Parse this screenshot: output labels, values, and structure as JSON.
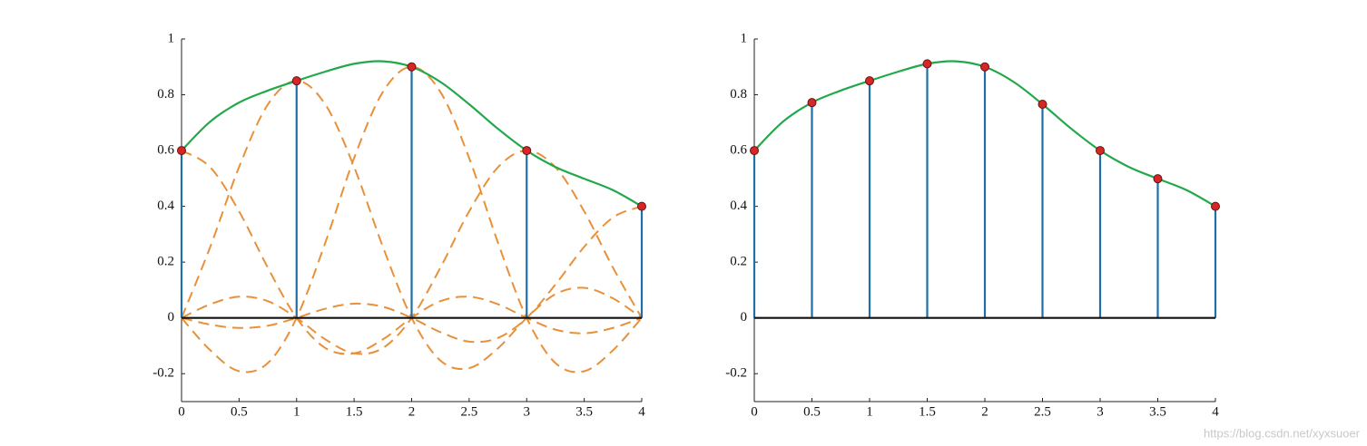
{
  "chart_data": [
    {
      "type": "stem",
      "x": [
        0,
        1,
        2,
        3,
        4
      ],
      "values": [
        0.6,
        0.85,
        0.9,
        0.6,
        0.4
      ],
      "stem_color": "#1f6fa8",
      "marker_color": "#d62728",
      "baseline_color": "#111111",
      "curve_x": [
        0,
        0.25,
        0.5,
        0.75,
        1,
        1.25,
        1.5,
        1.75,
        2,
        2.25,
        2.5,
        2.75,
        3,
        3.25,
        3.5,
        3.75,
        4
      ],
      "curve_values": [
        0.6,
        0.704,
        0.772,
        0.815,
        0.85,
        0.883,
        0.911,
        0.92,
        0.9,
        0.846,
        0.766,
        0.678,
        0.6,
        0.541,
        0.499,
        0.458,
        0.4
      ],
      "curve_color": "#22a84a",
      "component_color": "#e8913a",
      "components": [
        [
          0.6,
          0.54,
          0.382,
          0.18,
          0,
          -0.108,
          -0.127,
          -0.077,
          0,
          0.06,
          0.076,
          0.049,
          0,
          -0.042,
          -0.055,
          -0.036,
          0
        ],
        [
          0,
          0.255,
          0.541,
          0.765,
          0.85,
          0.765,
          0.541,
          0.255,
          0,
          -0.153,
          -0.18,
          -0.109,
          0,
          0.085,
          0.108,
          0.07,
          0
        ],
        [
          0,
          -0.116,
          -0.191,
          -0.162,
          0,
          0.27,
          0.573,
          0.81,
          0.9,
          0.81,
          0.573,
          0.27,
          0,
          -0.162,
          -0.191,
          -0.116,
          0
        ],
        [
          0,
          0.049,
          0.076,
          0.06,
          0,
          -0.077,
          -0.127,
          -0.108,
          0,
          0.18,
          0.382,
          0.54,
          0.6,
          0.54,
          0.382,
          0.18,
          0
        ],
        [
          0,
          -0.024,
          -0.036,
          -0.028,
          0,
          0.033,
          0.051,
          0.04,
          0,
          -0.051,
          -0.085,
          -0.072,
          0,
          0.12,
          0.255,
          0.36,
          0.4
        ]
      ],
      "xlim": [
        0,
        4
      ],
      "ylim": [
        -0.3,
        1
      ],
      "xticks": [
        0,
        0.5,
        1,
        1.5,
        2,
        2.5,
        3,
        3.5,
        4
      ],
      "yticks": [
        -0.2,
        0,
        0.2,
        0.4,
        0.6,
        0.8,
        1
      ]
    },
    {
      "type": "stem",
      "x": [
        0,
        0.5,
        1,
        1.5,
        2,
        2.5,
        3,
        3.5,
        4
      ],
      "values": [
        0.6,
        0.772,
        0.85,
        0.911,
        0.9,
        0.766,
        0.6,
        0.499,
        0.4
      ],
      "stem_color": "#1f6fa8",
      "marker_color": "#d62728",
      "baseline_color": "#111111",
      "curve_x": [
        0,
        0.25,
        0.5,
        0.75,
        1,
        1.25,
        1.5,
        1.75,
        2,
        2.25,
        2.5,
        2.75,
        3,
        3.25,
        3.5,
        3.75,
        4
      ],
      "curve_values": [
        0.6,
        0.704,
        0.772,
        0.815,
        0.85,
        0.883,
        0.911,
        0.92,
        0.9,
        0.846,
        0.766,
        0.678,
        0.6,
        0.541,
        0.499,
        0.458,
        0.4
      ],
      "curve_color": "#22a84a",
      "xlim": [
        0,
        4
      ],
      "ylim": [
        -0.3,
        1
      ],
      "xticks": [
        0,
        0.5,
        1,
        1.5,
        2,
        2.5,
        3,
        3.5,
        4
      ],
      "yticks": [
        -0.2,
        0,
        0.2,
        0.4,
        0.6,
        0.8,
        1
      ]
    }
  ],
  "watermark": "https://blog.csdn.net/xyxsuoer"
}
